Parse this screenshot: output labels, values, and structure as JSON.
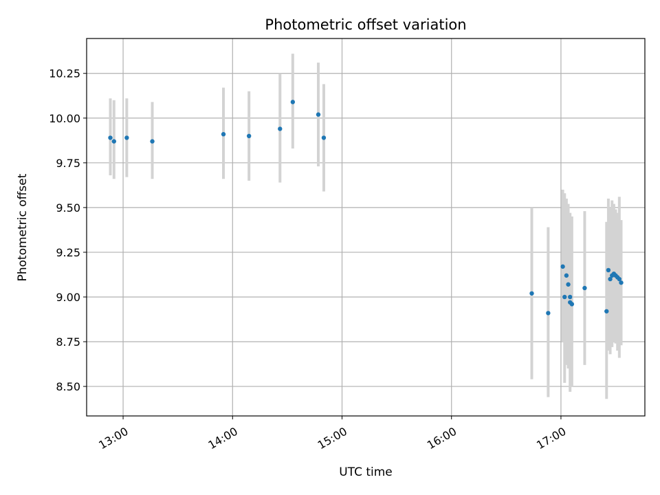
{
  "chart_data": {
    "type": "scatter",
    "title": "Photometric offset variation",
    "xlabel": "UTC time",
    "ylabel": "Photometric offset",
    "x_unit": "hours UTC",
    "xlim": [
      "12:40",
      "17:46"
    ],
    "ylim": [
      8.335,
      10.445
    ],
    "grid": true,
    "x_ticks": [
      {
        "value": "13:00",
        "label": "13:00"
      },
      {
        "value": "14:00",
        "label": "14:00"
      },
      {
        "value": "15:00",
        "label": "15:00"
      },
      {
        "value": "16:00",
        "label": "16:00"
      },
      {
        "value": "17:00",
        "label": "17:00"
      }
    ],
    "y_ticks": [
      {
        "value": 8.5,
        "label": "8.50"
      },
      {
        "value": 8.75,
        "label": "8.75"
      },
      {
        "value": 9.0,
        "label": "9.00"
      },
      {
        "value": 9.25,
        "label": "9.25"
      },
      {
        "value": 9.5,
        "label": "9.50"
      },
      {
        "value": 9.75,
        "label": "9.75"
      },
      {
        "value": 10.0,
        "label": "10.00"
      },
      {
        "value": 10.25,
        "label": "10.25"
      }
    ],
    "marker_color": "#1f77b4",
    "errorbar_color": "#d3d3d3",
    "points": [
      {
        "x": "12:53",
        "y": 9.89,
        "yerr_low": 9.68,
        "yerr_high": 10.11
      },
      {
        "x": "12:55",
        "y": 9.87,
        "yerr_low": 9.66,
        "yerr_high": 10.1
      },
      {
        "x": "13:02",
        "y": 9.89,
        "yerr_low": 9.67,
        "yerr_high": 10.11
      },
      {
        "x": "13:16",
        "y": 9.87,
        "yerr_low": 9.66,
        "yerr_high": 10.09
      },
      {
        "x": "13:55",
        "y": 9.91,
        "yerr_low": 9.66,
        "yerr_high": 10.17
      },
      {
        "x": "14:09",
        "y": 9.9,
        "yerr_low": 9.65,
        "yerr_high": 10.15
      },
      {
        "x": "14:26",
        "y": 9.94,
        "yerr_low": 9.64,
        "yerr_high": 10.25
      },
      {
        "x": "14:33",
        "y": 10.09,
        "yerr_low": 9.83,
        "yerr_high": 10.36
      },
      {
        "x": "14:47",
        "y": 10.02,
        "yerr_low": 9.73,
        "yerr_high": 10.31
      },
      {
        "x": "14:50",
        "y": 9.89,
        "yerr_low": 9.59,
        "yerr_high": 10.19
      },
      {
        "x": "16:44",
        "y": 9.02,
        "yerr_low": 8.54,
        "yerr_high": 9.5
      },
      {
        "x": "16:53",
        "y": 8.91,
        "yerr_low": 8.44,
        "yerr_high": 9.39
      },
      {
        "x": "17:01",
        "y": 9.17,
        "yerr_low": 8.75,
        "yerr_high": 9.6
      },
      {
        "x": "17:02",
        "y": 9.0,
        "yerr_low": 8.52,
        "yerr_high": 9.58
      },
      {
        "x": "17:03",
        "y": 9.12,
        "yerr_low": 8.62,
        "yerr_high": 9.55
      },
      {
        "x": "17:04",
        "y": 9.07,
        "yerr_low": 8.6,
        "yerr_high": 9.52
      },
      {
        "x": "17:05",
        "y": 9.0,
        "yerr_low": 8.62,
        "yerr_high": 9.47
      },
      {
        "x": "17:05",
        "y": 8.97,
        "yerr_low": 8.47,
        "yerr_high": 9.42
      },
      {
        "x": "17:06",
        "y": 8.96,
        "yerr_low": 8.5,
        "yerr_high": 9.45
      },
      {
        "x": "17:13",
        "y": 9.05,
        "yerr_low": 8.62,
        "yerr_high": 9.48
      },
      {
        "x": "17:25",
        "y": 8.92,
        "yerr_low": 8.43,
        "yerr_high": 9.42
      },
      {
        "x": "17:26",
        "y": 9.15,
        "yerr_low": 8.7,
        "yerr_high": 9.55
      },
      {
        "x": "17:27",
        "y": 9.1,
        "yerr_low": 8.68,
        "yerr_high": 9.5
      },
      {
        "x": "17:28",
        "y": 9.12,
        "yerr_low": 8.72,
        "yerr_high": 9.54
      },
      {
        "x": "17:29",
        "y": 9.13,
        "yerr_low": 8.75,
        "yerr_high": 9.52
      },
      {
        "x": "17:30",
        "y": 9.12,
        "yerr_low": 8.74,
        "yerr_high": 9.49
      },
      {
        "x": "17:31",
        "y": 9.11,
        "yerr_low": 8.7,
        "yerr_high": 9.47
      },
      {
        "x": "17:32",
        "y": 9.1,
        "yerr_low": 8.66,
        "yerr_high": 9.56
      },
      {
        "x": "17:33",
        "y": 9.08,
        "yerr_low": 8.73,
        "yerr_high": 9.43
      }
    ]
  }
}
